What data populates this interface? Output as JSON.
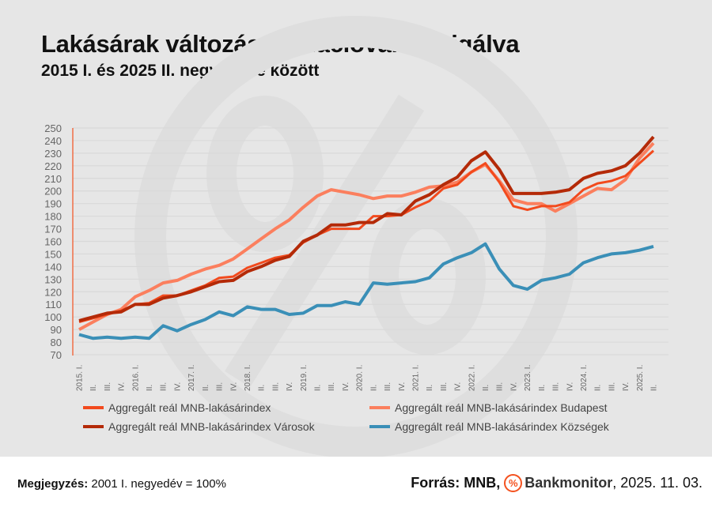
{
  "title": "Lakásárak változása inflációval korrigálva",
  "subtitle": "2015 I. és 2025 II. negyedéve között",
  "footer": {
    "note_label": "Megjegyzés:",
    "note_text": "2001 I. negyedév = 100%",
    "source_label": "Forrás: MNB,",
    "brand": "Bankmonitor",
    "date": ", 2025. 11. 03."
  },
  "chart_data": {
    "type": "line",
    "title": "Lakásárak változása inflációval korrigálva",
    "subtitle": "2015 I. és 2025 II. negyedéve között",
    "ylim": [
      70,
      250
    ],
    "yticks": [
      70,
      80,
      90,
      100,
      110,
      120,
      130,
      140,
      150,
      160,
      170,
      180,
      190,
      200,
      210,
      220,
      230,
      240,
      250
    ],
    "grid": true,
    "legend_position": "bottom",
    "categories": [
      "2015. I.",
      "II.",
      "III.",
      "IV.",
      "2016. I.",
      "II.",
      "III.",
      "IV.",
      "2017. I.",
      "II.",
      "III.",
      "IV.",
      "2018. I.",
      "II.",
      "III.",
      "IV.",
      "2019. I.",
      "II.",
      "III.",
      "IV.",
      "2020. I.",
      "II.",
      "III.",
      "IV.",
      "2021. I.",
      "II.",
      "III.",
      "IV.",
      "2022. I.",
      "II.",
      "III.",
      "IV.",
      "2023. I.",
      "II.",
      "III.",
      "IV.",
      "2024. I.",
      "II.",
      "III.",
      "IV.",
      "2025. I.",
      "II."
    ],
    "series": [
      {
        "name": "Aggregált reál MNB-lakásárindex",
        "color": "#f24a1d",
        "width": 3,
        "values": [
          96,
          99,
          102,
          105,
          110,
          111,
          117,
          117,
          121,
          125,
          131,
          132,
          139,
          143,
          147,
          149,
          159,
          165,
          170,
          170,
          170,
          180,
          180,
          181,
          187,
          192,
          202,
          205,
          215,
          222,
          207,
          188,
          185,
          188,
          188,
          191,
          201,
          206,
          208,
          212,
          222,
          232
        ]
      },
      {
        "name": "Aggregált reál MNB-lakásárindex Budapest",
        "color": "#fb7f5e",
        "width": 4,
        "values": [
          90,
          96,
          102,
          106,
          116,
          121,
          127,
          129,
          134,
          138,
          141,
          146,
          154,
          162,
          170,
          177,
          187,
          196,
          201,
          199,
          197,
          194,
          196,
          196,
          199,
          203,
          204,
          207,
          215,
          221,
          208,
          193,
          190,
          190,
          184,
          190,
          196,
          202,
          201,
          209,
          226,
          238
        ]
      },
      {
        "name": "Aggregált reál MNB-lakásárindex Városok",
        "color": "#b42a08",
        "width": 4,
        "values": [
          97,
          100,
          103,
          104,
          110,
          110,
          115,
          117,
          120,
          124,
          128,
          129,
          136,
          140,
          145,
          148,
          160,
          165,
          173,
          173,
          175,
          175,
          182,
          181,
          192,
          197,
          205,
          211,
          224,
          231,
          217,
          198,
          198,
          198,
          199,
          201,
          210,
          214,
          216,
          220,
          230,
          243
        ]
      },
      {
        "name": "Aggregált reál MNB-lakásárindex Községek",
        "color": "#3a8fb7",
        "width": 4,
        "values": [
          86,
          83,
          84,
          83,
          84,
          83,
          93,
          89,
          94,
          98,
          104,
          101,
          108,
          106,
          106,
          102,
          103,
          109,
          109,
          112,
          110,
          127,
          126,
          127,
          128,
          131,
          142,
          147,
          151,
          158,
          138,
          125,
          122,
          129,
          131,
          134,
          143,
          147,
          150,
          151,
          153,
          156
        ]
      }
    ]
  }
}
